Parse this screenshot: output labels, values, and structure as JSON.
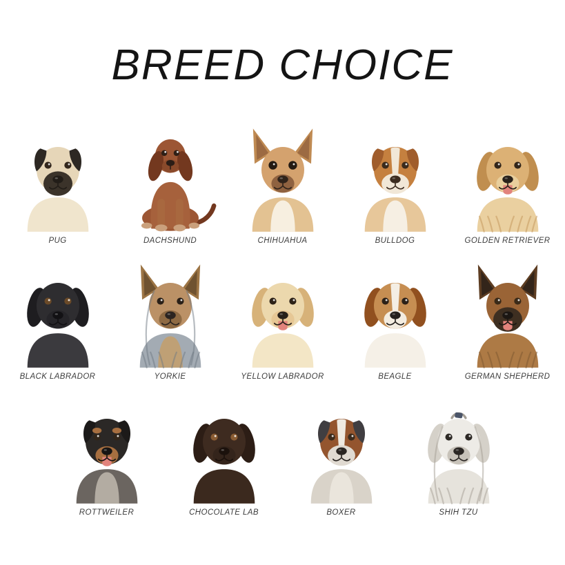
{
  "title": "BREED CHOICE",
  "colors": {
    "background": "#ffffff",
    "title_text": "#141414",
    "label_text": "#3d3d3d"
  },
  "rows": [
    {
      "breeds": [
        {
          "label": "PUG",
          "icon": "pug-illustration",
          "art": {
            "pose": "bust",
            "ear": "fold",
            "colors": {
              "head": "#e6d6b8",
              "ear": "#2d2823",
              "muzzle": "#3b332a",
              "chest": "#f0e5cd",
              "nose": "#221d18",
              "eye": "#33271c"
            },
            "features": {
              "mask": true
            }
          }
        },
        {
          "label": "DACHSHUND",
          "icon": "dachshund-illustration",
          "art": {
            "pose": "sitting",
            "ear": "floppy",
            "colors": {
              "head": "#9c5634",
              "ear": "#73381f",
              "muzzle": "#8a4a2b",
              "chest": "#a6613c",
              "leg": "#a8683f",
              "paw": "#caa07c",
              "nose": "#2b1d16",
              "eye": "#2e1f16"
            },
            "features": {}
          }
        },
        {
          "label": "CHIHUAHUA",
          "icon": "chihuahua-illustration",
          "art": {
            "pose": "bust",
            "ear": "pointy",
            "colors": {
              "head": "#d4a26e",
              "ear": "#bf8a52",
              "earInner": "#9c6a42",
              "muzzle": "#8f6240",
              "chest": "#e3c292",
              "nose": "#30231a",
              "eye": "#241a12"
            },
            "features": {
              "bib": "#f7efe0",
              "bigEyes": true
            }
          }
        },
        {
          "label": "BULLDOG",
          "icon": "bulldog-illustration",
          "art": {
            "pose": "bust",
            "ear": "fold",
            "colors": {
              "head": "#c5803f",
              "ear": "#a05d2c",
              "muzzle": "#f1e7d7",
              "chest": "#e7c79a",
              "nose": "#3c2c20",
              "eye": "#3a2a1c"
            },
            "features": {
              "bib": "#f6efe3",
              "blaze": "#f1e7d7",
              "jowls": true
            }
          }
        },
        {
          "label": "GOLDEN RETRIEVER",
          "icon": "golden-retriever-illustration",
          "art": {
            "pose": "bust",
            "ear": "floppy",
            "colors": {
              "head": "#dcb175",
              "ear": "#c08e4f",
              "muzzle": "#e9cf9d",
              "chest": "#ead0a0",
              "nose": "#2a221b",
              "eye": "#33261a"
            },
            "features": {
              "tongue": true,
              "shaggy": true,
              "shag": "#c29457"
            }
          }
        }
      ]
    },
    {
      "breeds": [
        {
          "label": "BLACK LABRADOR",
          "icon": "black-labrador-illustration",
          "art": {
            "pose": "bust",
            "ear": "floppy",
            "colors": {
              "head": "#2e2d30",
              "ear": "#1e1d20",
              "muzzle": "#262529",
              "chest": "#3b3a3e",
              "nose": "#121114",
              "eye": "#6b4a28"
            },
            "features": {}
          }
        },
        {
          "label": "YORKIE",
          "icon": "yorkie-illustration",
          "art": {
            "pose": "bust",
            "ear": "pointy",
            "colors": {
              "head": "#bb9166",
              "ear": "#9c7444",
              "earInner": "#6f5230",
              "muzzle": "#8e6a43",
              "chest": "#a3abb3",
              "nose": "#2b2420",
              "eye": "#2a2018"
            },
            "features": {
              "shaggy": true,
              "shag": "#707a84",
              "bib": "#bfa075",
              "sideStrands": true
            }
          }
        },
        {
          "label": "YELLOW LABRADOR",
          "icon": "yellow-labrador-illustration",
          "art": {
            "pose": "bust",
            "ear": "floppy",
            "colors": {
              "head": "#ecd8ad",
              "ear": "#d7b279",
              "muzzle": "#e6c795",
              "chest": "#f3e6c6",
              "nose": "#27201a",
              "eye": "#2e2318"
            },
            "features": {
              "tongue": true
            }
          }
        },
        {
          "label": "BEAGLE",
          "icon": "beagle-illustration",
          "art": {
            "pose": "bust",
            "ear": "floppy",
            "colors": {
              "head": "#c68e52",
              "ear": "#91501f",
              "muzzle": "#f3ece0",
              "chest": "#f5f0e7",
              "nose": "#24201d",
              "eye": "#2c2118"
            },
            "features": {
              "blaze": "#f4eee4"
            }
          }
        },
        {
          "label": "GERMAN SHEPHERD",
          "icon": "german-shepherd-illustration",
          "art": {
            "pose": "bust",
            "ear": "pointy",
            "colors": {
              "head": "#9a6436",
              "ear": "#5d3d22",
              "earInner": "#33251a",
              "muzzle": "#3e2f21",
              "chest": "#ad7a45",
              "nose": "#1c1713",
              "eye": "#3a2a18"
            },
            "features": {
              "mask": true,
              "tongue": true,
              "shaggy": true,
              "shag": "#7b5530"
            }
          }
        }
      ]
    },
    {
      "breeds": [
        {
          "label": "ROTTWEILER",
          "icon": "rottweiler-illustration",
          "art": {
            "pose": "bust",
            "ear": "fold",
            "colors": {
              "head": "#2b2826",
              "ear": "#1c1a19",
              "muzzle": "#a76f40",
              "chest": "#6b6560",
              "nose": "#171514",
              "eye": "#32261a"
            },
            "features": {
              "brows": "#a76f40",
              "tongue": true,
              "bib": "#b3aca2"
            }
          }
        },
        {
          "label": "CHOCOLATE LAB",
          "icon": "chocolate-lab-illustration",
          "art": {
            "pose": "bust",
            "ear": "floppy",
            "colors": {
              "head": "#3e2b20",
              "ear": "#2c1d15",
              "muzzle": "#34241b",
              "chest": "#3b291e",
              "nose": "#1b110c",
              "eye": "#8a5c33"
            },
            "features": {}
          }
        },
        {
          "label": "BOXER",
          "icon": "boxer-illustration",
          "art": {
            "pose": "bust",
            "ear": "fold",
            "colors": {
              "head": "#94552e",
              "ear": "#403e41",
              "muzzle": "#e0dad1",
              "chest": "#d9d3c9",
              "nose": "#2a2521",
              "eye": "#3b2b1d"
            },
            "features": {
              "blaze": "#eee9e0",
              "bib": "#eae5dc",
              "jowls": true
            }
          }
        },
        {
          "label": "SHIH TZU",
          "icon": "shih-tzu-illustration",
          "art": {
            "pose": "bust",
            "ear": "floppy",
            "colors": {
              "head": "#edebe6",
              "ear": "#d5d1c9",
              "muzzle": "#c8c3ba",
              "chest": "#e6e3dc",
              "nose": "#2b2724",
              "eye": "#2d2925"
            },
            "features": {
              "shaggy": true,
              "shag": "#a39d94",
              "topknot": true,
              "sideStrands": true
            }
          }
        }
      ]
    }
  ]
}
